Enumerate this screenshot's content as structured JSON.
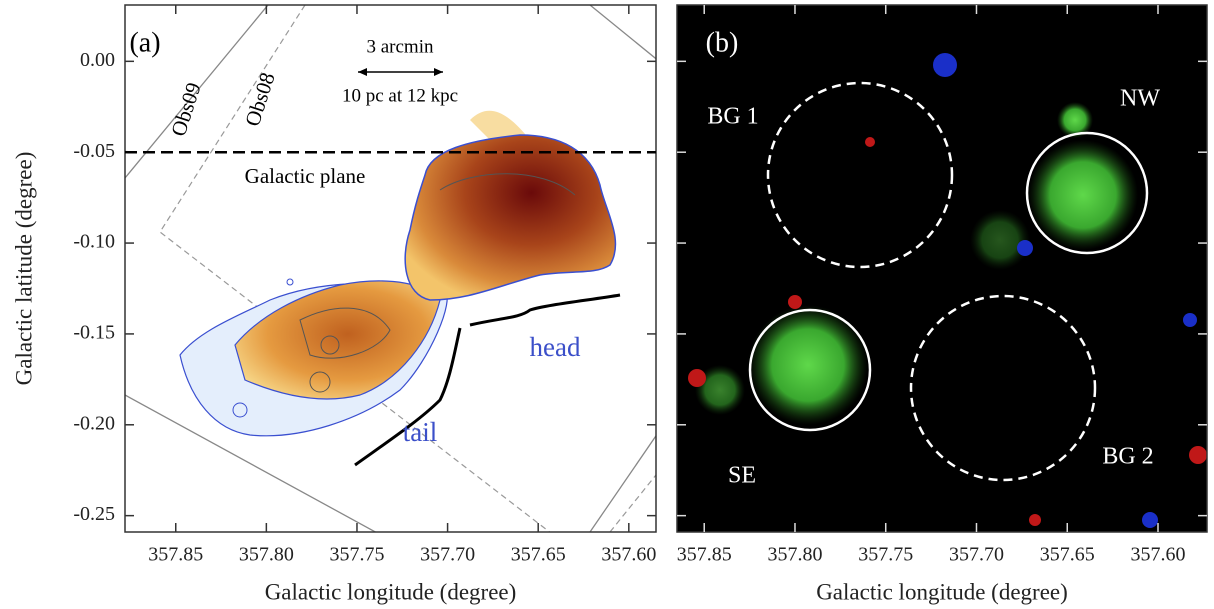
{
  "chart_data": [
    {
      "type": "image",
      "xlabel": "Galactic longitude (degree)",
      "ylabel": "Galactic latitude (degree)",
      "xlim": [
        357.878,
        357.585
      ],
      "ylim": [
        -0.259,
        0.031
      ],
      "xticks": [
        357.85,
        {
          "value": 357.8,
          "label": "357.80"
        },
        357.75,
        {
          "value": 357.7,
          "label": "357.70"
        },
        357.65,
        {
          "value": 357.6,
          "label": "357.60"
        }
      ],
      "yticks": [
        {
          "value": 0,
          "label": "0.00"
        },
        -0.05,
        {
          "value": -0.1,
          "label": "-0.10"
        },
        -0.15,
        {
          "value": -0.2,
          "label": "-0.20"
        },
        -0.25
      ],
      "annotations": [
        "(a)",
        "3 arcmin",
        "10 pc at 12 kpc",
        "Galactic plane",
        "Obs09",
        "Obs08",
        "head",
        "tail"
      ]
    },
    {
      "type": "image",
      "xlabel": "Galactic longitude (degree)",
      "xlim": [
        357.865,
        357.573
      ],
      "ylim": [
        -0.259,
        0.031
      ],
      "xticks": [
        357.85,
        {
          "value": 357.8,
          "label": "357.80"
        },
        357.75,
        {
          "value": 357.7,
          "label": "357.70"
        },
        357.65,
        {
          "value": 357.6,
          "label": "357.60"
        }
      ],
      "yticks": [
        0,
        -0.05,
        -0.1,
        -0.15,
        -0.2,
        -0.25
      ],
      "annotations": [
        "(b)",
        "BG 1",
        "NW",
        "SE",
        "BG 2"
      ]
    }
  ]
}
